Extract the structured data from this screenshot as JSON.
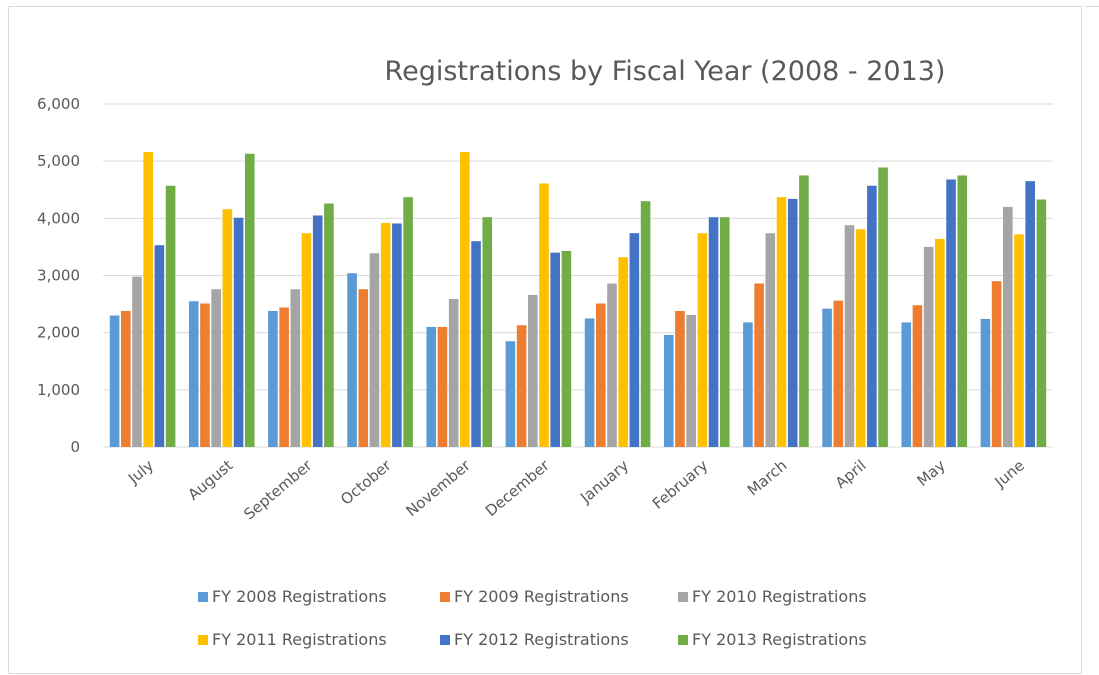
{
  "chart_data": {
    "type": "bar",
    "title": "Registrations by Fiscal Year (2008 - 2013)",
    "xlabel": "",
    "ylabel": "",
    "ylim": [
      0,
      6000
    ],
    "yticks": [
      "0",
      "1,000",
      "2,000",
      "3,000",
      "4,000",
      "5,000",
      "6,000"
    ],
    "grid": true,
    "legend_position": "bottom",
    "categories": [
      "July",
      "August",
      "September",
      "October",
      "November",
      "December",
      "January",
      "February",
      "March",
      "April",
      "May",
      "June"
    ],
    "series": [
      {
        "name": "FY 2008 Registrations",
        "color": "#5b9bd5",
        "values": [
          2300,
          2550,
          2380,
          3040,
          2100,
          1850,
          2250,
          1960,
          2180,
          2420,
          2180,
          2240
        ]
      },
      {
        "name": "FY 2009 Registrations",
        "color": "#ed7d31",
        "values": [
          2380,
          2510,
          2440,
          2760,
          2100,
          2130,
          2510,
          2380,
          2860,
          2560,
          2480,
          2900
        ]
      },
      {
        "name": "FY 2010 Registrations",
        "color": "#a5a5a5",
        "values": [
          2980,
          2760,
          2760,
          3390,
          2590,
          2660,
          2860,
          2310,
          3740,
          3880,
          3500,
          4200
        ]
      },
      {
        "name": "FY 2011 Registrations",
        "color": "#ffc000",
        "values": [
          5160,
          4160,
          3740,
          3920,
          5160,
          4610,
          3320,
          3740,
          4370,
          3810,
          3640,
          3720
        ]
      },
      {
        "name": "FY 2012 Registrations",
        "color": "#4472c4",
        "values": [
          3530,
          4010,
          4050,
          3910,
          3600,
          3400,
          3740,
          4020,
          4340,
          4570,
          4680,
          4650
        ]
      },
      {
        "name": "FY 2013 Registrations",
        "color": "#70ad47",
        "values": [
          4570,
          5130,
          4260,
          4370,
          4020,
          3430,
          4300,
          4020,
          4750,
          4890,
          4750,
          4330
        ]
      }
    ]
  }
}
